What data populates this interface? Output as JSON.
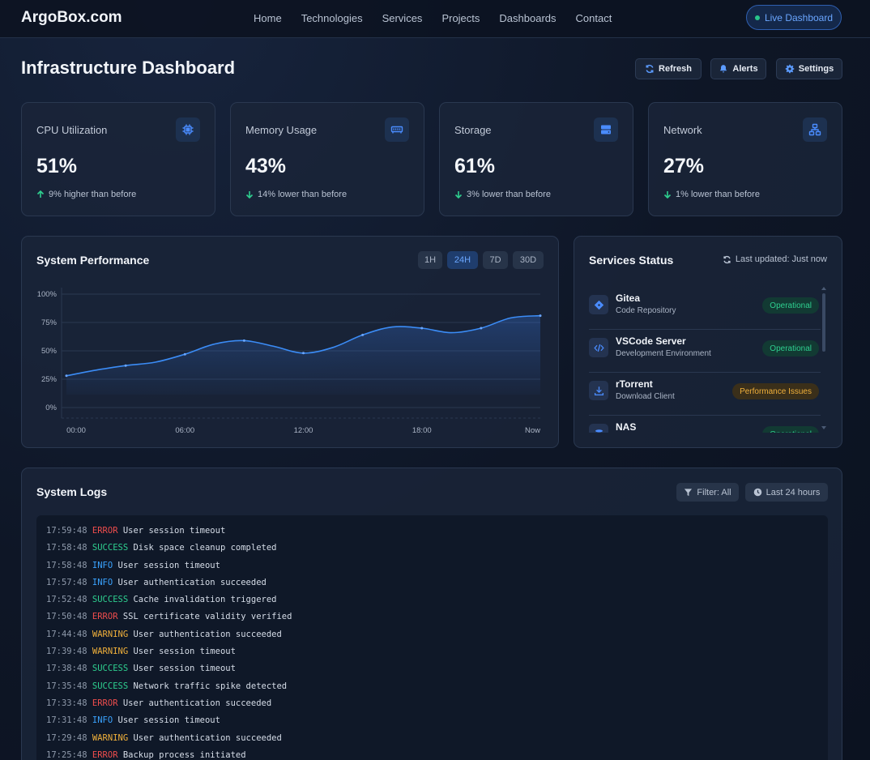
{
  "nav": {
    "brand": "ArgoBox.com",
    "links": [
      "Home",
      "Technologies",
      "Services",
      "Projects",
      "Dashboards",
      "Contact"
    ],
    "live_label": "Live Dashboard"
  },
  "header": {
    "title": "Infrastructure Dashboard",
    "refresh_label": "Refresh",
    "alerts_label": "Alerts",
    "settings_label": "Settings"
  },
  "stats": [
    {
      "label": "CPU Utilization",
      "value": "51%",
      "trend": "9% higher than before",
      "direction": "up",
      "icon": "cpu-icon"
    },
    {
      "label": "Memory Usage",
      "value": "43%",
      "trend": "14% lower than before",
      "direction": "down",
      "icon": "memory-icon"
    },
    {
      "label": "Storage",
      "value": "61%",
      "trend": "3% lower than before",
      "direction": "down",
      "icon": "server-icon"
    },
    {
      "label": "Network",
      "value": "27%",
      "trend": "1% lower than before",
      "direction": "down",
      "icon": "network-icon"
    }
  ],
  "performance": {
    "title": "System Performance",
    "ranges": [
      "1H",
      "24H",
      "7D",
      "30D"
    ],
    "active_range": "24H"
  },
  "chart_data": {
    "type": "area",
    "title": "",
    "xlabel": "",
    "ylabel": "",
    "x_ticks": [
      "00:00",
      "06:00",
      "12:00",
      "18:00",
      "Now"
    ],
    "y_ticks": [
      "100%",
      "75%",
      "50%",
      "25%",
      "0%"
    ],
    "ylim": [
      0,
      100
    ],
    "grid": true,
    "series": [
      {
        "x": [
          0,
          1.5,
          3,
          4.5,
          6,
          7.5,
          9,
          10.5,
          12,
          13.5,
          15,
          16.5,
          18,
          19.5,
          21,
          22.5,
          24
        ],
        "values": [
          28,
          33,
          37,
          40,
          47,
          56,
          59,
          54,
          48,
          53,
          64,
          71,
          70,
          66,
          70,
          79,
          81
        ]
      }
    ]
  },
  "services": {
    "title": "Services Status",
    "updated": "Last updated: Just now",
    "items": [
      {
        "name": "Gitea",
        "desc": "Code Repository",
        "status": "Operational",
        "level": "ok",
        "icon": "git-icon"
      },
      {
        "name": "VSCode Server",
        "desc": "Development Environment",
        "status": "Operational",
        "level": "ok",
        "icon": "code-icon"
      },
      {
        "name": "rTorrent",
        "desc": "Download Client",
        "status": "Performance Issues",
        "level": "warn",
        "icon": "download-icon"
      },
      {
        "name": "NAS",
        "desc": "",
        "status": "Operational",
        "level": "ok",
        "icon": "database-icon"
      }
    ]
  },
  "logs": {
    "title": "System Logs",
    "filter_label": "Filter: All",
    "period_label": "Last 24 hours",
    "entries": [
      {
        "time": "17:59:48",
        "level": "ERROR",
        "msg": "User session timeout"
      },
      {
        "time": "17:58:48",
        "level": "SUCCESS",
        "msg": "Disk space cleanup completed"
      },
      {
        "time": "17:58:48",
        "level": "INFO",
        "msg": "User session timeout"
      },
      {
        "time": "17:57:48",
        "level": "INFO",
        "msg": "User authentication succeeded"
      },
      {
        "time": "17:52:48",
        "level": "SUCCESS",
        "msg": "Cache invalidation triggered"
      },
      {
        "time": "17:50:48",
        "level": "ERROR",
        "msg": "SSL certificate validity verified"
      },
      {
        "time": "17:44:48",
        "level": "WARNING",
        "msg": "User authentication succeeded"
      },
      {
        "time": "17:39:48",
        "level": "WARNING",
        "msg": "User session timeout"
      },
      {
        "time": "17:38:48",
        "level": "SUCCESS",
        "msg": "User session timeout"
      },
      {
        "time": "17:35:48",
        "level": "SUCCESS",
        "msg": "Network traffic spike detected"
      },
      {
        "time": "17:33:48",
        "level": "ERROR",
        "msg": "User authentication succeeded"
      },
      {
        "time": "17:31:48",
        "level": "INFO",
        "msg": "User session timeout"
      },
      {
        "time": "17:29:48",
        "level": "WARNING",
        "msg": "User authentication succeeded"
      },
      {
        "time": "17:25:48",
        "level": "ERROR",
        "msg": "Backup process initiated"
      }
    ]
  },
  "colors": {
    "accent": "#3b82f6",
    "success": "#2ecf8f",
    "warning": "#f0b03b",
    "error": "#ef4d4d"
  }
}
